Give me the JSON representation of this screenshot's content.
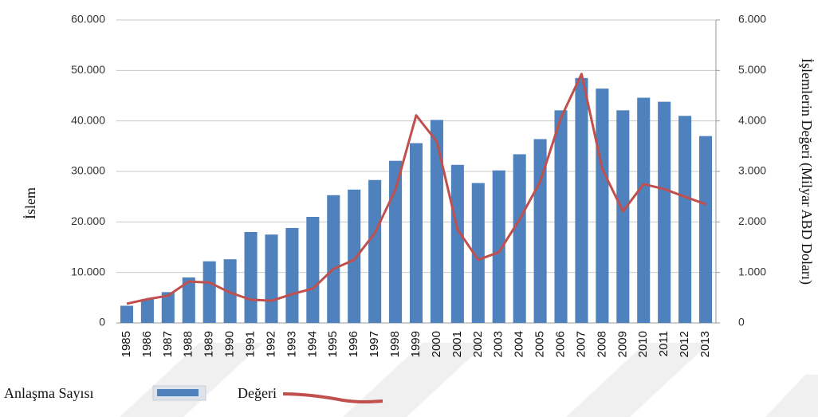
{
  "chart_data": {
    "type": "bar_line",
    "y_label": "İslem",
    "y2_label": "İşlemlerin Değeri (Milyar ABD Doları)",
    "categories": [
      "1985",
      "1986",
      "1987",
      "1988",
      "1989",
      "1990",
      "1991",
      "1992",
      "1993",
      "1994",
      "1995",
      "1996",
      "1997",
      "1998",
      "1999",
      "2000",
      "2001",
      "2002",
      "2003",
      "2004",
      "2005",
      "2006",
      "2007",
      "2008",
      "2009",
      "2010",
      "2011",
      "2012",
      "2013"
    ],
    "series": [
      {
        "name": "Anlaşma Sayısı",
        "type": "bar",
        "color": "#4f81bd",
        "values": [
          3400,
          4700,
          6100,
          9000,
          12200,
          12600,
          18000,
          17500,
          18800,
          21000,
          25300,
          26400,
          28300,
          32100,
          35600,
          40200,
          31300,
          27700,
          30200,
          33400,
          36400,
          42100,
          48500,
          46400,
          42100,
          44600,
          43800,
          41000,
          37000
        ]
      },
      {
        "name": "Değeri",
        "type": "line",
        "color": "#c0504d",
        "axis": "y2",
        "values": [
          380,
          470,
          540,
          820,
          800,
          600,
          460,
          440,
          570,
          680,
          1070,
          1250,
          1780,
          2640,
          4110,
          3590,
          1850,
          1250,
          1400,
          2050,
          2800,
          4060,
          4930,
          3050,
          2210,
          2750,
          2650,
          2500,
          2350
        ]
      }
    ],
    "ylim": [
      0,
      60000
    ],
    "yticks": [
      0,
      {
        "value": 10000,
        "label": "10.000"
      },
      {
        "value": 20000,
        "label": "20.000"
      },
      {
        "value": 30000,
        "label": "30.000"
      },
      {
        "value": 40000,
        "label": "40.000"
      },
      {
        "value": 50000,
        "label": "50.000"
      },
      {
        "value": 60000,
        "label": "60.000"
      }
    ],
    "y2lim": [
      0,
      6000
    ],
    "y2ticks": [
      0,
      {
        "value": 1000,
        "label": "1.000"
      },
      {
        "value": 2000,
        "label": "2.000"
      },
      {
        "value": 3000,
        "label": "3.000"
      },
      {
        "value": 4000,
        "label": "4.000"
      },
      {
        "value": 5000,
        "label": "5.000"
      },
      {
        "value": 6000,
        "label": "6.000"
      }
    ],
    "grid": true
  }
}
